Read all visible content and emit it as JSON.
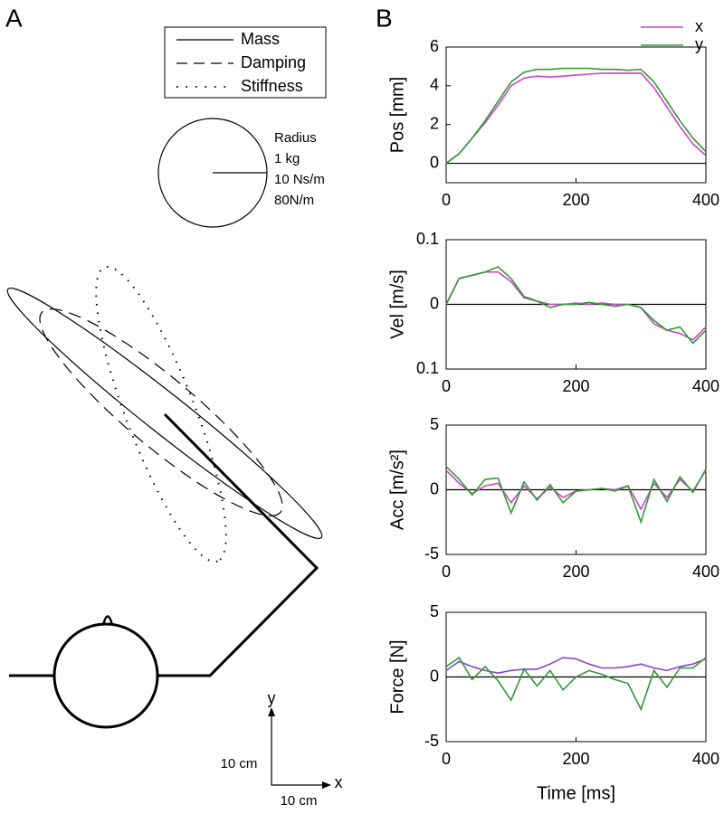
{
  "panel_a": {
    "label": "A",
    "legend": [
      "Mass",
      "Damping",
      "Stiffness"
    ],
    "scale_circle": [
      "Radius",
      "1 kg",
      "10 Ns/m",
      "80N/m"
    ],
    "scale_bar": {
      "y_axis": "y",
      "x_axis": "x",
      "y_length": "10 cm",
      "x_length": "10 cm"
    }
  },
  "panel_b": {
    "label": "B"
  },
  "chart_data": [
    {
      "type": "line",
      "ylabel": "Pos [mm]",
      "legend": "upper right",
      "x": [
        0,
        20,
        40,
        60,
        80,
        100,
        120,
        140,
        160,
        180,
        200,
        220,
        240,
        260,
        280,
        300,
        320,
        340,
        360,
        380,
        400
      ],
      "xlim": [
        0,
        400
      ],
      "xticks": [
        0,
        200,
        400
      ],
      "ylim": [
        -1,
        6
      ],
      "yticks": [
        0,
        2,
        4,
        6
      ],
      "series": [
        {
          "name": "x",
          "color": "#cc44cc",
          "values": [
            0,
            0.5,
            1.3,
            2.1,
            3.0,
            4.0,
            4.4,
            4.5,
            4.45,
            4.5,
            4.55,
            4.6,
            4.65,
            4.65,
            4.65,
            4.65,
            3.9,
            2.9,
            1.9,
            1.0,
            0.4
          ]
        },
        {
          "name": "y",
          "color": "#339933",
          "values": [
            0,
            0.5,
            1.3,
            2.2,
            3.2,
            4.2,
            4.7,
            4.85,
            4.85,
            4.9,
            4.9,
            4.9,
            4.85,
            4.85,
            4.8,
            4.85,
            4.2,
            3.2,
            2.2,
            1.3,
            0.6
          ]
        }
      ]
    },
    {
      "type": "line",
      "ylabel": "Vel [m/s]",
      "x": [
        0,
        20,
        40,
        60,
        80,
        100,
        120,
        140,
        160,
        180,
        200,
        220,
        240,
        260,
        280,
        300,
        320,
        340,
        360,
        380,
        400
      ],
      "xlim": [
        0,
        400
      ],
      "xticks": [
        0,
        200,
        400
      ],
      "ylim": [
        -0.1,
        0.1
      ],
      "yticks": [
        {
          "value": -0.1,
          "label": "0.1"
        },
        0,
        0.1
      ],
      "series": [
        {
          "color": "#cc44cc",
          "values": [
            0,
            0.04,
            0.045,
            0.05,
            0.05,
            0.035,
            0.01,
            0.005,
            0,
            0,
            0.002,
            0,
            0.002,
            0,
            0,
            -0.005,
            -0.03,
            -0.04,
            -0.045,
            -0.055,
            -0.035
          ]
        },
        {
          "color": "#339933",
          "values": [
            0,
            0.04,
            0.045,
            0.05,
            0.058,
            0.04,
            0.012,
            0.005,
            -0.005,
            0,
            0,
            0.003,
            0,
            -0.003,
            0,
            -0.005,
            -0.025,
            -0.04,
            -0.035,
            -0.06,
            -0.04
          ]
        }
      ]
    },
    {
      "type": "line",
      "ylabel": "Acc [m/s²]",
      "x": [
        0,
        20,
        40,
        60,
        80,
        100,
        120,
        140,
        160,
        180,
        200,
        220,
        240,
        260,
        280,
        300,
        320,
        340,
        360,
        380,
        400
      ],
      "xlim": [
        0,
        400
      ],
      "xticks": [
        0,
        200,
        400
      ],
      "ylim": [
        -5,
        5
      ],
      "yticks": [
        -5,
        0,
        5
      ],
      "series": [
        {
          "color": "#cc44cc",
          "values": [
            1.5,
            0.5,
            -0.3,
            0.3,
            0.5,
            -1.0,
            0.3,
            -0.7,
            0.2,
            -0.6,
            -0.1,
            0,
            0.1,
            0,
            0.3,
            -1.5,
            0.5,
            -0.6,
            0.8,
            -0.1,
            1.5
          ]
        },
        {
          "color": "#339933",
          "values": [
            1.8,
            0.8,
            -0.4,
            0.8,
            0.9,
            -1.8,
            0.6,
            -0.8,
            0.4,
            -1.0,
            -0.1,
            0,
            0.1,
            -0.1,
            0.3,
            -2.5,
            0.8,
            -0.9,
            1.0,
            -0.2,
            1.6
          ]
        }
      ]
    },
    {
      "type": "line",
      "ylabel": "Force [N]",
      "xlabel": "Time [ms]",
      "x": [
        0,
        20,
        40,
        60,
        80,
        100,
        120,
        140,
        160,
        180,
        200,
        220,
        240,
        260,
        280,
        300,
        320,
        340,
        360,
        380,
        400
      ],
      "xlim": [
        0,
        400
      ],
      "xticks": [
        0,
        200,
        400
      ],
      "ylim": [
        -5,
        5
      ],
      "yticks": [
        -5,
        0,
        5
      ],
      "series": [
        {
          "color": "#8844cc",
          "values": [
            0.5,
            1.2,
            0.8,
            0.5,
            0.3,
            0.5,
            0.6,
            0.6,
            1.0,
            1.5,
            1.4,
            1.0,
            0.7,
            0.7,
            0.8,
            1.0,
            0.7,
            0.5,
            0.8,
            1.0,
            1.4
          ]
        },
        {
          "color": "#339933",
          "values": [
            0.8,
            1.5,
            -0.2,
            0.8,
            -0.3,
            -1.8,
            0.6,
            -0.7,
            0.5,
            -1.0,
            0,
            0.5,
            0.2,
            -0.2,
            -0.5,
            -2.5,
            0.5,
            -0.8,
            0.7,
            0.7,
            1.5
          ]
        }
      ]
    }
  ]
}
